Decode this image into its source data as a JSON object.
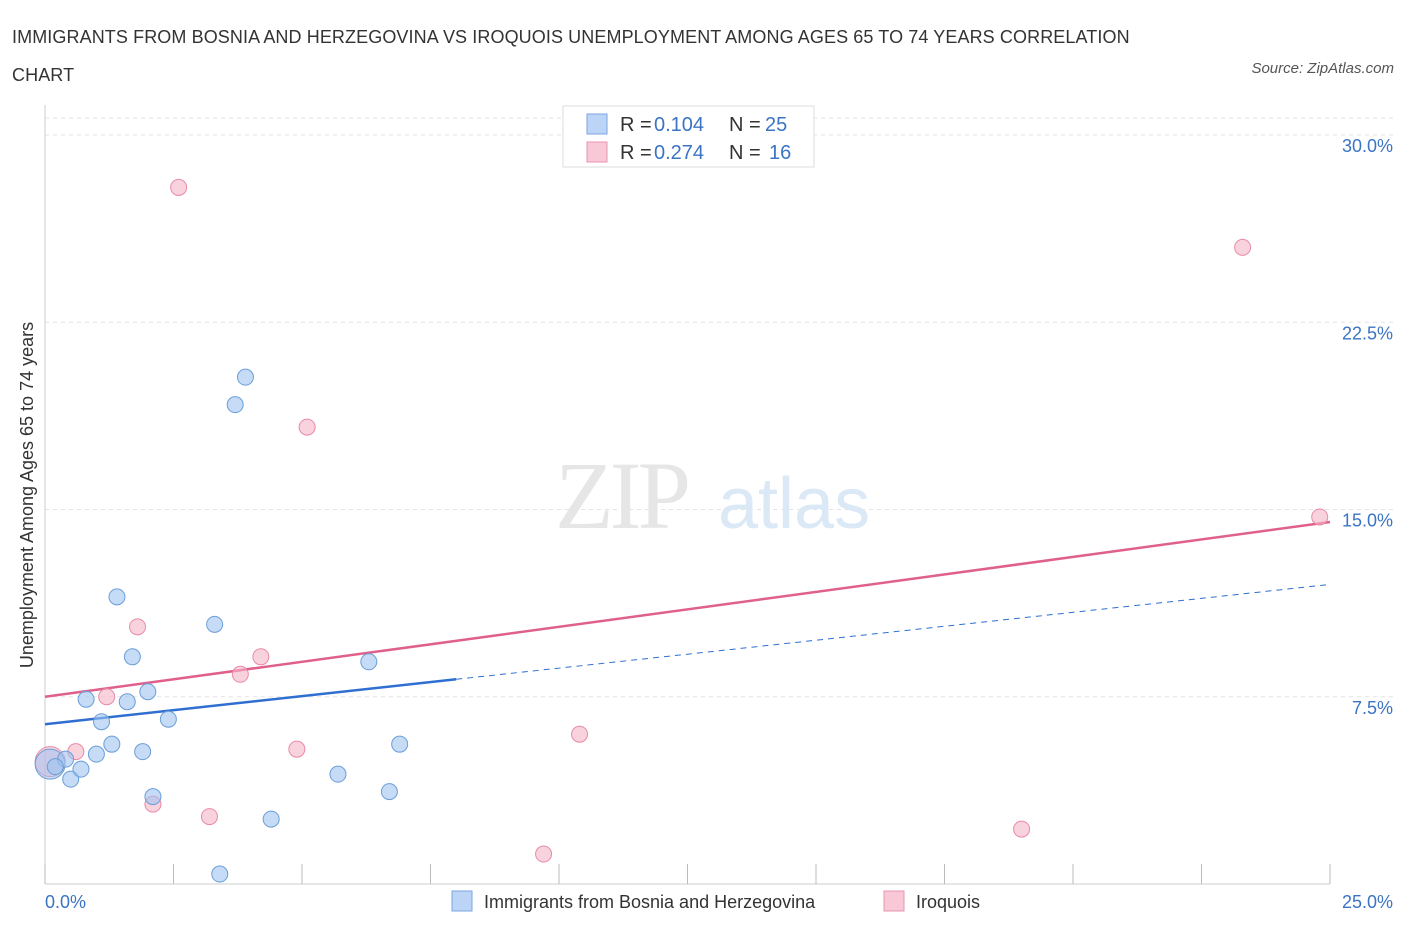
{
  "title": "IMMIGRANTS FROM BOSNIA AND HERZEGOVINA VS IROQUOIS UNEMPLOYMENT AMONG AGES 65 TO 74 YEARS CORRELATION CHART",
  "source": "Source: ZipAtlas.com",
  "watermark": {
    "zip": "ZIP",
    "atlas": "atlas"
  },
  "legend": {
    "r_label": "R =",
    "n_label": "N =",
    "rows": [
      {
        "r": "0.104",
        "n": "25",
        "color": "#9ec3f0"
      },
      {
        "r": "0.274",
        "n": "16",
        "color": "#f4b5c8"
      }
    ]
  },
  "chart_data": {
    "type": "scatter",
    "title": "IMMIGRANTS FROM BOSNIA AND HERZEGOVINA VS IROQUOIS UNEMPLOYMENT AMONG AGES 65 TO 74 YEARS CORRELATION CHART",
    "xlabel": "",
    "ylabel": "Unemployment Among Ages 65 to 74 years",
    "xlim": [
      0,
      25
    ],
    "ylim": [
      0,
      30
    ],
    "x_tick_labels": [
      "0.0%",
      "25.0%"
    ],
    "y_ticks": [
      7.5,
      15.0,
      22.5,
      30.0
    ],
    "y_tick_labels": [
      "7.5%",
      "15.0%",
      "22.5%",
      "30.0%"
    ],
    "series": [
      {
        "name": "Immigrants from Bosnia and Herzegovina",
        "color": "#9ec3f0",
        "stroke": "#6a9ed8",
        "line_color": "#2f6fd1",
        "trend": {
          "x0": 0,
          "y0": 6.4,
          "x1": 8.0,
          "y1": 8.2,
          "dash_to_x": 25,
          "dash_to_y": 12.0
        },
        "points": [
          {
            "x": 0.1,
            "y": 4.8,
            "big": true
          },
          {
            "x": 0.4,
            "y": 5.0
          },
          {
            "x": 0.5,
            "y": 4.2
          },
          {
            "x": 0.7,
            "y": 4.6
          },
          {
            "x": 0.8,
            "y": 7.4
          },
          {
            "x": 1.0,
            "y": 5.2
          },
          {
            "x": 1.1,
            "y": 6.5
          },
          {
            "x": 1.3,
            "y": 5.6
          },
          {
            "x": 1.4,
            "y": 11.5
          },
          {
            "x": 1.6,
            "y": 7.3
          },
          {
            "x": 1.7,
            "y": 9.1
          },
          {
            "x": 1.9,
            "y": 5.3
          },
          {
            "x": 2.0,
            "y": 7.7
          },
          {
            "x": 2.1,
            "y": 3.5
          },
          {
            "x": 2.4,
            "y": 6.6
          },
          {
            "x": 3.3,
            "y": 10.4
          },
          {
            "x": 3.4,
            "y": 0.4
          },
          {
            "x": 3.7,
            "y": 19.2
          },
          {
            "x": 3.9,
            "y": 20.3
          },
          {
            "x": 4.4,
            "y": 2.6
          },
          {
            "x": 5.7,
            "y": 4.4
          },
          {
            "x": 6.3,
            "y": 8.9
          },
          {
            "x": 6.7,
            "y": 3.7
          },
          {
            "x": 6.9,
            "y": 5.6
          },
          {
            "x": 0.2,
            "y": 4.7
          }
        ]
      },
      {
        "name": "Iroquois",
        "color": "#f4b5c8",
        "stroke": "#e88aa7",
        "line_color": "#e0608c",
        "trend": {
          "x0": 0,
          "y0": 7.5,
          "x1": 25,
          "y1": 14.5
        },
        "points": [
          {
            "x": 0.1,
            "y": 4.9,
            "big": true
          },
          {
            "x": 0.6,
            "y": 5.3
          },
          {
            "x": 1.2,
            "y": 7.5
          },
          {
            "x": 1.8,
            "y": 10.3
          },
          {
            "x": 2.1,
            "y": 3.2
          },
          {
            "x": 2.6,
            "y": 27.9
          },
          {
            "x": 3.2,
            "y": 2.7
          },
          {
            "x": 3.8,
            "y": 8.4
          },
          {
            "x": 4.2,
            "y": 9.1
          },
          {
            "x": 4.9,
            "y": 5.4
          },
          {
            "x": 5.1,
            "y": 18.3
          },
          {
            "x": 9.7,
            "y": 1.2
          },
          {
            "x": 10.4,
            "y": 6.0
          },
          {
            "x": 19.0,
            "y": 2.2
          },
          {
            "x": 23.3,
            "y": 25.5
          },
          {
            "x": 24.8,
            "y": 14.7
          }
        ]
      }
    ]
  }
}
